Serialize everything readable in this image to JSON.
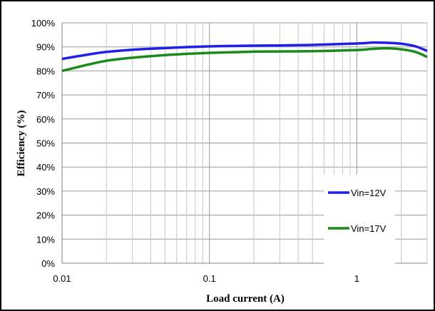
{
  "chart_data": {
    "type": "line",
    "title": "",
    "xlabel": "Load current (A)",
    "ylabel": "Efficiency (%)",
    "x_scale": "log",
    "xlim": [
      0.01,
      3
    ],
    "ylim": [
      0,
      100
    ],
    "x_tick_labels": [
      "0.01",
      "0.1",
      "1"
    ],
    "y_tick_labels": [
      "0%",
      "10%",
      "20%",
      "30%",
      "40%",
      "50%",
      "60%",
      "70%",
      "80%",
      "90%",
      "100%"
    ],
    "grid": true,
    "legend_position": "right",
    "series": [
      {
        "name": "Vin=12V",
        "color": "#1f1fe6",
        "x": [
          0.01,
          0.015,
          0.02,
          0.03,
          0.05,
          0.07,
          0.1,
          0.15,
          0.2,
          0.3,
          0.5,
          0.7,
          0.9,
          1.1,
          1.3,
          1.6,
          2.0,
          2.5,
          3.0
        ],
        "y": [
          85,
          86.8,
          87.9,
          88.8,
          89.5,
          89.9,
          90.2,
          90.4,
          90.5,
          90.6,
          90.8,
          91.1,
          91.3,
          91.5,
          91.8,
          91.7,
          91.3,
          90.2,
          88.3
        ]
      },
      {
        "name": "Vin=17V",
        "color": "#1a8a1a",
        "x": [
          0.01,
          0.015,
          0.02,
          0.03,
          0.05,
          0.07,
          0.1,
          0.15,
          0.2,
          0.3,
          0.5,
          0.7,
          0.9,
          1.1,
          1.3,
          1.6,
          2.0,
          2.5,
          3.0
        ],
        "y": [
          80,
          82.6,
          84.2,
          85.5,
          86.6,
          87.1,
          87.5,
          87.8,
          88.0,
          88.1,
          88.2,
          88.4,
          88.6,
          88.8,
          89.2,
          89.4,
          89.0,
          87.9,
          85.8
        ]
      }
    ]
  }
}
